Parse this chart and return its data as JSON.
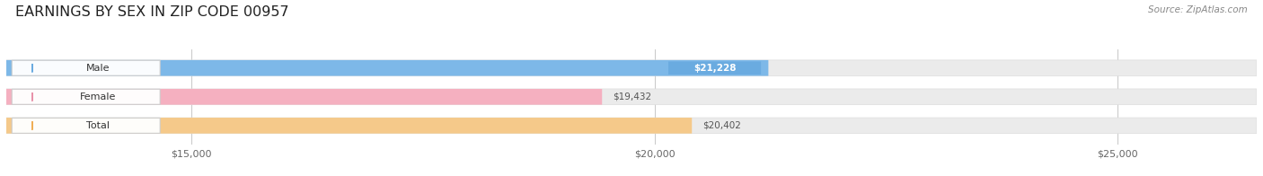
{
  "title": "EARNINGS BY SEX IN ZIP CODE 00957",
  "source_text": "Source: ZipAtlas.com",
  "categories": [
    "Male",
    "Female",
    "Total"
  ],
  "values": [
    21228,
    19432,
    20402
  ],
  "bar_colors": [
    "#7db8e8",
    "#f5b0c0",
    "#f5c98a"
  ],
  "bar_bg_color": "#ebebeb",
  "label_bg_color": "#f7f7f7",
  "label_colors": [
    "#6aabe0",
    "#e892aa",
    "#f0ae55"
  ],
  "value_labels": [
    "$21,228",
    "$19,432",
    "$20,402"
  ],
  "xlim_min": 13000,
  "xlim_max": 26500,
  "xticks": [
    15000,
    20000,
    25000
  ],
  "xtick_labels": [
    "$15,000",
    "$20,000",
    "$25,000"
  ],
  "background_color": "#ffffff",
  "title_fontsize": 11.5,
  "source_fontsize": 7.5,
  "bar_height": 0.55,
  "fig_width": 14.06,
  "fig_height": 1.96
}
